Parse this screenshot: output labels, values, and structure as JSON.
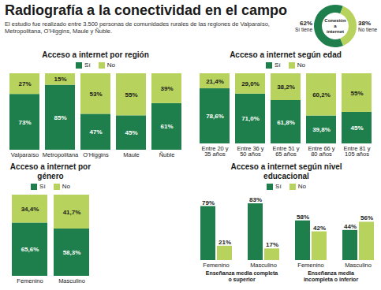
{
  "title": "Radiografía a la conectividad en el campo",
  "subtitle": "El estudio fue realizado entre 3.500 personas de comunidades rurales de las regiones de Valparaíso, Metropolitana, O'Higgins, Maule y Ñuble.",
  "chart_data": [
    {
      "type": "pie",
      "title": "Conexión a internet",
      "categories": [
        "Sí tiene",
        "No tiene"
      ],
      "values": [
        62,
        38
      ],
      "value_labels": [
        "62%",
        "38%"
      ],
      "colors": [
        "#1f7f4c",
        "#b7d35e"
      ],
      "data_labels": true
    },
    {
      "type": "bar",
      "title": "Acceso a internet por región",
      "categories": [
        "Valparaíso",
        "Metropolitana",
        "O'Higgins",
        "Maule",
        "Ñuble"
      ],
      "series": [
        {
          "name": "Sí",
          "color": "#1f7f4c",
          "values": [
            73,
            85,
            47,
            45,
            61
          ],
          "value_labels": [
            "73%",
            "85%",
            "47%",
            "45%",
            "61%"
          ]
        },
        {
          "name": "No",
          "color": "#b7d35e",
          "values": [
            27,
            15,
            53,
            55,
            39
          ],
          "value_labels": [
            "27%",
            "15%",
            "53%",
            "55%",
            "39%"
          ]
        }
      ],
      "stacked": true,
      "data_labels": true,
      "legend": "top",
      "tick_labels": "x"
    },
    {
      "type": "bar",
      "title": "Acceso a internet según edad",
      "categories": [
        "Entre 20 y 35 años",
        "Entre 36 y 50 años",
        "Entre 51 y 65 años",
        "Entre 66 y 80 años",
        "Entre 81 y 105 años"
      ],
      "series": [
        {
          "name": "Sí",
          "color": "#1f7f4c",
          "values": [
            78.6,
            71.0,
            61.8,
            39.8,
            45
          ],
          "value_labels": [
            "78,6%",
            "71,0%",
            "61,8%",
            "39,8%",
            "45%"
          ]
        },
        {
          "name": "No",
          "color": "#b7d35e",
          "values": [
            21.4,
            29.0,
            38.2,
            60.2,
            55
          ],
          "value_labels": [
            "21,4%",
            "29,0%",
            "38,2%",
            "60,2%",
            "55%"
          ]
        }
      ],
      "stacked": true,
      "data_labels": true,
      "legend": "top",
      "tick_labels": "x"
    },
    {
      "type": "bar",
      "title": "Acceso a internet por género",
      "categories": [
        "Femenino",
        "Masculino"
      ],
      "series": [
        {
          "name": "Sí",
          "color": "#1f7f4c",
          "values": [
            65.6,
            58.3
          ],
          "value_labels": [
            "65,6%",
            "58,3%"
          ]
        },
        {
          "name": "No",
          "color": "#b7d35e",
          "values": [
            34.4,
            41.7
          ],
          "value_labels": [
            "34,4%",
            "41,7%"
          ]
        }
      ],
      "stacked": true,
      "data_labels": true,
      "legend": "top",
      "tick_labels": "x"
    },
    {
      "type": "bar",
      "title": "Acceso a internet según nivel educacional",
      "categories": [
        "Femenino",
        "Masculino",
        "Femenino",
        "Masculino"
      ],
      "groups": [
        "Enseñanza media completa o superior",
        "Enseñanza media completa o superior",
        "Enseñanza media incompleta o inferior",
        "Enseñanza media incompleta o inferior"
      ],
      "series": [
        {
          "name": "Sí",
          "color": "#1f7f4c",
          "values": [
            79,
            83,
            58,
            44
          ],
          "value_labels": [
            "79%",
            "83%",
            "58%",
            "44%"
          ]
        },
        {
          "name": "No",
          "color": "#b7d35e",
          "values": [
            21,
            17,
            42,
            56
          ],
          "value_labels": [
            "21%",
            "17%",
            "42%",
            "56%"
          ]
        }
      ],
      "stacked": false,
      "data_labels": true,
      "legend": "top",
      "tick_labels": "x"
    }
  ]
}
